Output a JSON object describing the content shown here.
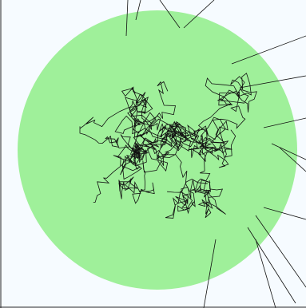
{
  "colors": {
    "background": "#f6fbff",
    "frame": "#222222",
    "circle_fill": "#9ff09a",
    "path_stroke": "#111111"
  }
}
